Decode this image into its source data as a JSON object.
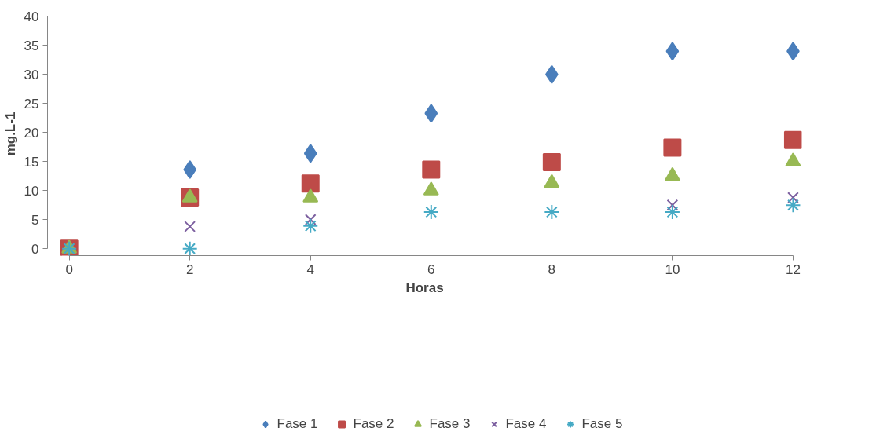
{
  "chart_data": {
    "type": "scatter",
    "xlabel": "Horas",
    "ylabel": "mg.L-1",
    "x": [
      0,
      2,
      4,
      6,
      8,
      10,
      12
    ],
    "xlim": [
      0,
      12
    ],
    "xticks": [
      0,
      2,
      4,
      6,
      8,
      10,
      12
    ],
    "ylim": [
      0,
      40
    ],
    "yticks": [
      0,
      5,
      10,
      15,
      20,
      25,
      30,
      35,
      40
    ],
    "grid": false,
    "legend": "bottom",
    "series": [
      {
        "name": "Fase 1",
        "color": "#4a7ebb",
        "marker": "diamond",
        "values": [
          null,
          13.6,
          16.4,
          23.3,
          30.0,
          34.0,
          34.0
        ]
      },
      {
        "name": "Fase 2",
        "color": "#be4b48",
        "marker": "square",
        "values": [
          0,
          8.8,
          11.2,
          13.6,
          14.9,
          17.4,
          18.7
        ]
      },
      {
        "name": "Fase 3",
        "color": "#98b954",
        "marker": "triangle",
        "values": [
          0,
          8.8,
          8.8,
          10.0,
          11.3,
          12.5,
          15.0
        ]
      },
      {
        "name": "Fase 4",
        "color": "#7d60a0",
        "marker": "cross",
        "values": [
          null,
          3.8,
          5.0,
          null,
          null,
          7.5,
          8.8
        ]
      },
      {
        "name": "Fase 5",
        "color": "#46aac5",
        "marker": "cross",
        "values": [
          0,
          0,
          3.9,
          6.3,
          6.3,
          6.3,
          7.5
        ]
      }
    ]
  }
}
